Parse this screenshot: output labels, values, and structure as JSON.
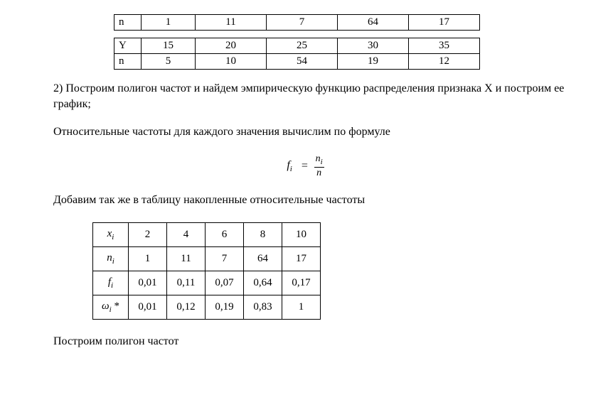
{
  "table_n1": {
    "row_label": "n",
    "cells": [
      "1",
      "11",
      "7",
      "64",
      "17"
    ]
  },
  "table_yn": {
    "rows": [
      {
        "label": "Y",
        "cells": [
          "15",
          "20",
          "25",
          "30",
          "35"
        ]
      },
      {
        "label": "n",
        "cells": [
          "5",
          "10",
          "54",
          "19",
          "12"
        ]
      }
    ]
  },
  "para1": "2) Построим полигон частот и найдем эмпирическую функцию распределения признака X и построим ее график;",
  "para2": "Относительные частоты для каждого значения вычислим по формуле",
  "formula": {
    "left": "f",
    "left_sub": "i",
    "num": "n",
    "num_sub": "i",
    "den": "n"
  },
  "para3": "Добавим так же в таблицу накопленные относительные частоты",
  "table_freq": {
    "headers": {
      "x": "x",
      "x_sub": "i",
      "n": "n",
      "n_sub": "i",
      "f": "f",
      "f_sub": "i",
      "w": "ω",
      "w_sub": "i",
      "w_after": " *"
    },
    "x_row": [
      "2",
      "4",
      "6",
      "8",
      "10"
    ],
    "n_row": [
      "1",
      "11",
      "7",
      "64",
      "17"
    ],
    "f_row": [
      "0,01",
      "0,11",
      "0,07",
      "0,64",
      "0,17"
    ],
    "w_row": [
      "0,01",
      "0,12",
      "0,19",
      "0,83",
      "1"
    ]
  },
  "para4": "Построим полигон частот"
}
